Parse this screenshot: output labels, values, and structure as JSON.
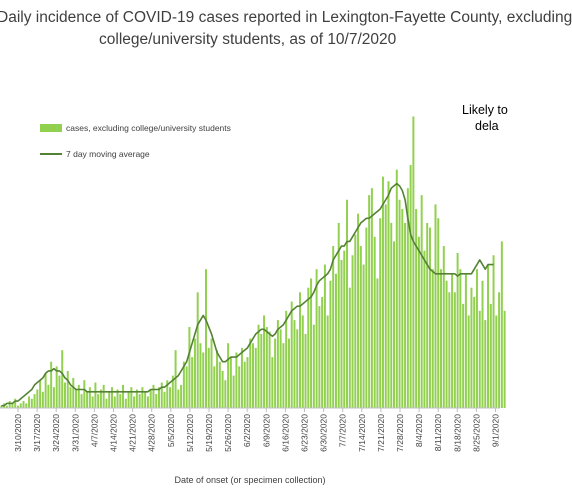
{
  "chart_data": {
    "type": "bar",
    "title_lines": [
      "Daily incidence of COVID-19 cases reported in Lexington-Fayette County, excluding",
      "college/university students, as of 10/7/2020"
    ],
    "annotation_lines": [
      "Likely to",
      "dela"
    ],
    "xlabel": "Date of onset (or specimen collection)",
    "ylabel": "",
    "grid": false,
    "legend_position": "top-left",
    "colors": {
      "bars": "#92d050",
      "moving_average": "#548235",
      "axis": "#bfbfbf"
    },
    "tick_labels": [
      "3/10/2020",
      "3/17/2020",
      "3/24/2020",
      "3/31/2020",
      "4/7/2020",
      "4/14/2020",
      "4/21/2020",
      "4/28/2020",
      "5/5/2020",
      "5/12/2020",
      "5/19/2020",
      "5/26/2020",
      "6/2/2020",
      "6/9/2020",
      "6/16/2020",
      "6/23/2020",
      "6/30/2020",
      "7/7/2020",
      "7/14/2020",
      "7/21/2020",
      "7/28/2020",
      "8/4/2020",
      "8/11/2020",
      "8/18/2020",
      "8/25/2020",
      "9/1/2020"
    ],
    "ylim": [
      0,
      135
    ],
    "series": [
      {
        "name": "cases, excluding college/university students",
        "kind": "bar",
        "values": [
          1,
          2,
          1,
          3,
          2,
          4,
          1,
          2,
          3,
          2,
          5,
          4,
          6,
          8,
          12,
          7,
          15,
          10,
          20,
          9,
          18,
          14,
          25,
          11,
          16,
          9,
          13,
          8,
          10,
          6,
          12,
          7,
          9,
          5,
          11,
          6,
          8,
          10,
          4,
          7,
          9,
          5,
          8,
          6,
          10,
          4,
          7,
          9,
          5,
          8,
          6,
          9,
          7,
          5,
          8,
          10,
          6,
          9,
          11,
          7,
          12,
          9,
          14,
          25,
          8,
          10,
          20,
          18,
          35,
          22,
          30,
          50,
          28,
          24,
          60,
          26,
          30,
          18,
          25,
          20,
          16,
          12,
          28,
          22,
          14,
          24,
          18,
          26,
          20,
          22,
          30,
          28,
          26,
          36,
          32,
          40,
          35,
          33,
          22,
          30,
          38,
          34,
          28,
          42,
          30,
          46,
          38,
          34,
          50,
          40,
          32,
          52,
          56,
          36,
          60,
          44,
          48,
          62,
          40,
          55,
          70,
          58,
          80,
          64,
          68,
          90,
          52,
          66,
          75,
          84,
          70,
          62,
          78,
          92,
          95,
          74,
          56,
          82,
          100,
          88,
          98,
          80,
          72,
          103,
          90,
          86,
          80,
          95,
          105,
          126,
          86,
          74,
          92,
          68,
          80,
          78,
          60,
          88,
          82,
          60,
          70,
          55,
          50,
          58,
          50,
          67,
          60,
          45,
          58,
          40,
          52,
          48,
          60,
          42,
          55,
          38,
          62,
          45,
          66,
          40,
          50,
          72,
          42
        ],
        "note": "values estimated"
      },
      {
        "name": "7 day moving average",
        "kind": "line",
        "values": [
          1,
          1,
          2,
          2,
          2,
          3,
          3,
          4,
          5,
          6,
          7,
          8,
          10,
          11,
          12,
          13,
          15,
          16,
          16,
          17,
          16,
          16,
          15,
          13,
          12,
          10,
          9,
          8,
          8,
          8,
          8,
          7,
          7,
          7,
          7,
          7,
          7,
          7,
          7,
          7,
          7,
          7,
          7,
          7,
          7,
          7,
          7,
          7,
          7,
          7,
          7,
          7,
          7,
          7,
          8,
          8,
          8,
          8,
          9,
          9,
          10,
          11,
          12,
          13,
          14,
          16,
          18,
          20,
          24,
          28,
          32,
          36,
          38,
          40,
          38,
          35,
          32,
          28,
          24,
          22,
          20,
          20,
          21,
          22,
          22,
          22,
          23,
          24,
          25,
          26,
          28,
          30,
          32,
          33,
          34,
          34,
          33,
          32,
          31,
          32,
          34,
          35,
          36,
          38,
          40,
          42,
          43,
          44,
          44,
          45,
          46,
          47,
          48,
          50,
          53,
          55,
          56,
          57,
          58,
          60,
          64,
          66,
          68,
          70,
          70,
          72,
          72,
          74,
          76,
          78,
          80,
          81,
          82,
          82,
          83,
          84,
          85,
          86,
          88,
          90,
          92,
          95,
          96,
          97,
          96,
          94,
          90,
          82,
          75,
          72,
          70,
          68,
          66,
          64,
          62,
          60,
          59,
          58,
          58,
          58,
          58,
          58,
          58,
          58,
          58,
          57,
          58,
          58,
          58,
          58,
          58,
          60,
          62,
          64,
          62,
          60,
          62,
          62,
          62
        ]
      }
    ]
  }
}
